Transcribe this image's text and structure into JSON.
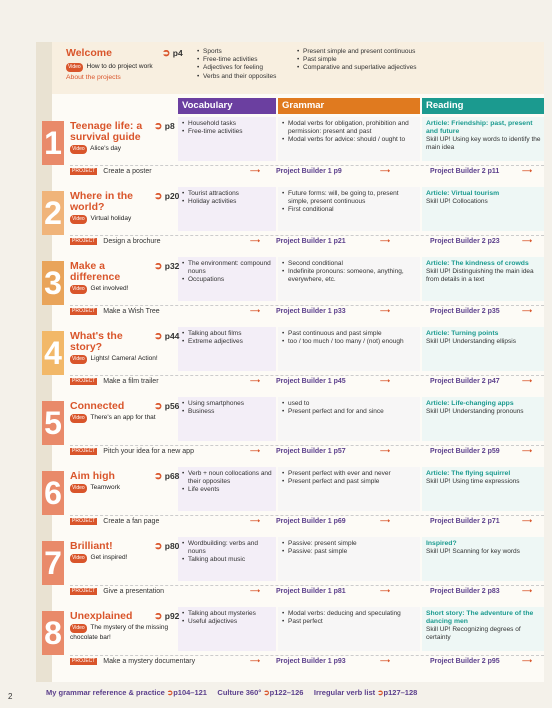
{
  "welcome": {
    "title": "Welcome",
    "page": "p4",
    "video": "How to do project work",
    "sub": "About the projects",
    "vocab": [
      "Sports",
      "Free-time activities",
      "Adjectives for feeling",
      "Verbs and their opposites"
    ],
    "grammar": [
      "Present simple and present continuous",
      "Past simple",
      "Comparative and superlative adjectives"
    ]
  },
  "headers": {
    "vocab": "Vocabulary",
    "grammar": "Grammar",
    "reading": "Reading"
  },
  "video_badge": "Video",
  "project_badge": "PROJECT",
  "units": [
    {
      "num": "1",
      "title": "Teenage life: a survival guide",
      "page": "p8",
      "video": "Alice's day",
      "vocab": [
        "Household tasks",
        "Free-time activities"
      ],
      "grammar": [
        "Modal verbs for obligation, prohibition and permission: present and past",
        "Modal verbs for advice: should / ought to"
      ],
      "reading_title": "Article: Friendship: past, present and future",
      "reading_sub": "Skill UP! Using key words to identify the main idea",
      "project": "Create a poster",
      "pb1": "Project Builder 1  p9",
      "pb2": "Project Builder 2  p11"
    },
    {
      "num": "2",
      "title": "Where in the world?",
      "page": "p20",
      "video": "Virtual holiday",
      "vocab": [
        "Tourist attractions",
        "Holiday activities"
      ],
      "grammar": [
        "Future forms: will, be going to, present simple, present continuous",
        "First conditional"
      ],
      "reading_title": "Article: Virtual tourism",
      "reading_sub": "Skill UP! Collocations",
      "project": "Design a brochure",
      "pb1": "Project Builder 1  p21",
      "pb2": "Project Builder 2  p23"
    },
    {
      "num": "3",
      "title": "Make a difference",
      "page": "p32",
      "video": "Get involved!",
      "vocab": [
        "The environment: compound nouns",
        "Occupations"
      ],
      "grammar": [
        "Second conditional",
        "Indefinite pronouns: someone, anything, everywhere, etc."
      ],
      "reading_title": "Article: The kindness of crowds",
      "reading_sub": "Skill UP! Distinguishing the main idea from details in a text",
      "project": "Make a Wish Tree",
      "pb1": "Project Builder 1  p33",
      "pb2": "Project Builder 2  p35"
    },
    {
      "num": "4",
      "title": "What's the story?",
      "page": "p44",
      "video": "Lights! Camera! Action!",
      "vocab": [
        "Talking about films",
        "Extreme adjectives"
      ],
      "grammar": [
        "Past continuous and past simple",
        "too / too much / too many / (not) enough"
      ],
      "reading_title": "Article: Turning points",
      "reading_sub": "Skill UP! Understanding ellipsis",
      "project": "Make a film trailer",
      "pb1": "Project Builder 1  p45",
      "pb2": "Project Builder 2  p47"
    },
    {
      "num": "5",
      "title": "Connected",
      "page": "p56",
      "video": "There's an app for that",
      "vocab": [
        "Using smartphones",
        "Business"
      ],
      "grammar": [
        "used to",
        "Present perfect and for and since"
      ],
      "reading_title": "Article: Life-changing apps",
      "reading_sub": "Skill UP! Understanding pronouns",
      "project": "Pitch your idea for a new app",
      "pb1": "Project Builder 1  p57",
      "pb2": "Project Builder 2  p59"
    },
    {
      "num": "6",
      "title": "Aim high",
      "page": "p68",
      "video": "Teamwork",
      "vocab": [
        "Verb + noun collocations and their opposites",
        "Life events"
      ],
      "grammar": [
        "Present perfect with ever and never",
        "Present perfect and past simple"
      ],
      "reading_title": "Article: The flying squirrel",
      "reading_sub": "Skill UP! Using time expressions",
      "project": "Create a fan page",
      "pb1": "Project Builder 1  p69",
      "pb2": "Project Builder 2  p71"
    },
    {
      "num": "7",
      "title": "Brilliant!",
      "page": "p80",
      "video": "Get inspired!",
      "vocab": [
        "Wordbuilding: verbs and nouns",
        "Talking about music"
      ],
      "grammar": [
        "Passive: present simple",
        "Passive: past simple"
      ],
      "reading_title": "Inspired?",
      "reading_sub": "Skill UP! Scanning for key words",
      "project": "Give a presentation",
      "pb1": "Project Builder 1  p81",
      "pb2": "Project Builder 2  p83"
    },
    {
      "num": "8",
      "title": "Unexplained",
      "page": "p92",
      "video": "The mystery of the missing chocolate bar!",
      "vocab": [
        "Talking about mysteries",
        "Useful adjectives"
      ],
      "grammar": [
        "Modal verbs: deducing and speculating",
        "Past perfect"
      ],
      "reading_title": "Short story: The adventure of the dancing men",
      "reading_sub": "Skill UP! Recognizing degrees of certainty",
      "project": "Make a mystery documentary",
      "pb1": "Project Builder 1  p93",
      "pb2": "Project Builder 2  p95"
    }
  ],
  "footer": {
    "grammar_ref": "My grammar reference & practice",
    "grammar_pages": "p104–121",
    "culture": "Culture 360°",
    "culture_pages": "p122–126",
    "irregular": "Irregular verb list",
    "irregular_pages": "p127–128"
  },
  "page_number": "2",
  "colors": {
    "accent": "#d9552b",
    "vocab": "#6b3fa0",
    "grammar": "#e07a1f",
    "reading": "#1b9a8f"
  }
}
